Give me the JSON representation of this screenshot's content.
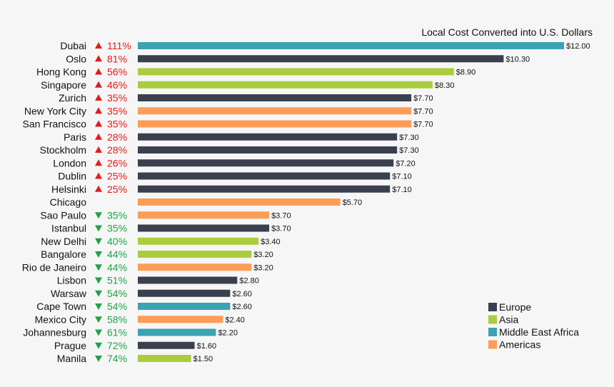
{
  "chart_data": {
    "type": "bar",
    "orientation": "horizontal",
    "subtitle": "Local Cost Converted into U.S. Dollars",
    "xlim": [
      0,
      12
    ],
    "grid": false,
    "legend_position": "bottom-right",
    "series": [
      {
        "name": "Europe",
        "color": "#3a404e"
      },
      {
        "name": "Asia",
        "color": "#a9cd3c"
      },
      {
        "name": "Middle East Africa",
        "color": "#3ba3b2"
      },
      {
        "name": "Americas",
        "color": "#fb9d57"
      }
    ],
    "rows": [
      {
        "city": "Dubai",
        "change": "111%",
        "direction": "up",
        "value": 12.0,
        "label": "$12.00",
        "region": "Middle East Africa"
      },
      {
        "city": "Oslo",
        "change": "81%",
        "direction": "up",
        "value": 10.3,
        "label": "$10.30",
        "region": "Europe"
      },
      {
        "city": "Hong Kong",
        "change": "56%",
        "direction": "up",
        "value": 8.9,
        "label": "$8.90",
        "region": "Asia"
      },
      {
        "city": "Singapore",
        "change": "46%",
        "direction": "up",
        "value": 8.3,
        "label": "$8.30",
        "region": "Asia"
      },
      {
        "city": "Zurich",
        "change": "35%",
        "direction": "up",
        "value": 7.7,
        "label": "$7.70",
        "region": "Europe"
      },
      {
        "city": "New York City",
        "change": "35%",
        "direction": "up",
        "value": 7.7,
        "label": "$7.70",
        "region": "Americas"
      },
      {
        "city": "San Francisco",
        "change": "35%",
        "direction": "up",
        "value": 7.7,
        "label": "$7.70",
        "region": "Americas"
      },
      {
        "city": "Paris",
        "change": "28%",
        "direction": "up",
        "value": 7.3,
        "label": "$7.30",
        "region": "Europe"
      },
      {
        "city": "Stockholm",
        "change": "28%",
        "direction": "up",
        "value": 7.3,
        "label": "$7.30",
        "region": "Europe"
      },
      {
        "city": "London",
        "change": "26%",
        "direction": "up",
        "value": 7.2,
        "label": "$7.20",
        "region": "Europe"
      },
      {
        "city": "Dublin",
        "change": "25%",
        "direction": "up",
        "value": 7.1,
        "label": "$7.10",
        "region": "Europe"
      },
      {
        "city": "Helsinki",
        "change": "25%",
        "direction": "up",
        "value": 7.1,
        "label": "$7.10",
        "region": "Europe"
      },
      {
        "city": "Chicago",
        "change": "",
        "direction": "none",
        "value": 5.7,
        "label": "$5.70",
        "region": "Americas"
      },
      {
        "city": "Sao Paulo",
        "change": "35%",
        "direction": "down",
        "value": 3.7,
        "label": "$3.70",
        "region": "Americas"
      },
      {
        "city": "Istanbul",
        "change": "35%",
        "direction": "down",
        "value": 3.7,
        "label": "$3.70",
        "region": "Europe"
      },
      {
        "city": "New Delhi",
        "change": "40%",
        "direction": "down",
        "value": 3.4,
        "label": "$3.40",
        "region": "Asia"
      },
      {
        "city": "Bangalore",
        "change": "44%",
        "direction": "down",
        "value": 3.2,
        "label": "$3.20",
        "region": "Asia"
      },
      {
        "city": "Rio de Janeiro",
        "change": "44%",
        "direction": "down",
        "value": 3.2,
        "label": "$3.20",
        "region": "Americas"
      },
      {
        "city": "Lisbon",
        "change": "51%",
        "direction": "down",
        "value": 2.8,
        "label": "$2.80",
        "region": "Europe"
      },
      {
        "city": "Warsaw",
        "change": "54%",
        "direction": "down",
        "value": 2.6,
        "label": "$2.60",
        "region": "Europe"
      },
      {
        "city": "Cape Town",
        "change": "54%",
        "direction": "down",
        "value": 2.6,
        "label": "$2.60",
        "region": "Middle East Africa"
      },
      {
        "city": "Mexico City",
        "change": "58%",
        "direction": "down",
        "value": 2.4,
        "label": "$2.40",
        "region": "Americas"
      },
      {
        "city": "Johannesburg",
        "change": "61%",
        "direction": "down",
        "value": 2.2,
        "label": "$2.20",
        "region": "Middle East Africa"
      },
      {
        "city": "Prague",
        "change": "72%",
        "direction": "down",
        "value": 1.6,
        "label": "$1.60",
        "region": "Europe"
      },
      {
        "city": "Manila",
        "change": "74%",
        "direction": "down",
        "value": 1.5,
        "label": "$1.50",
        "region": "Asia"
      }
    ],
    "up_color": "#e31b1b",
    "down_color": "#1fa34a"
  }
}
